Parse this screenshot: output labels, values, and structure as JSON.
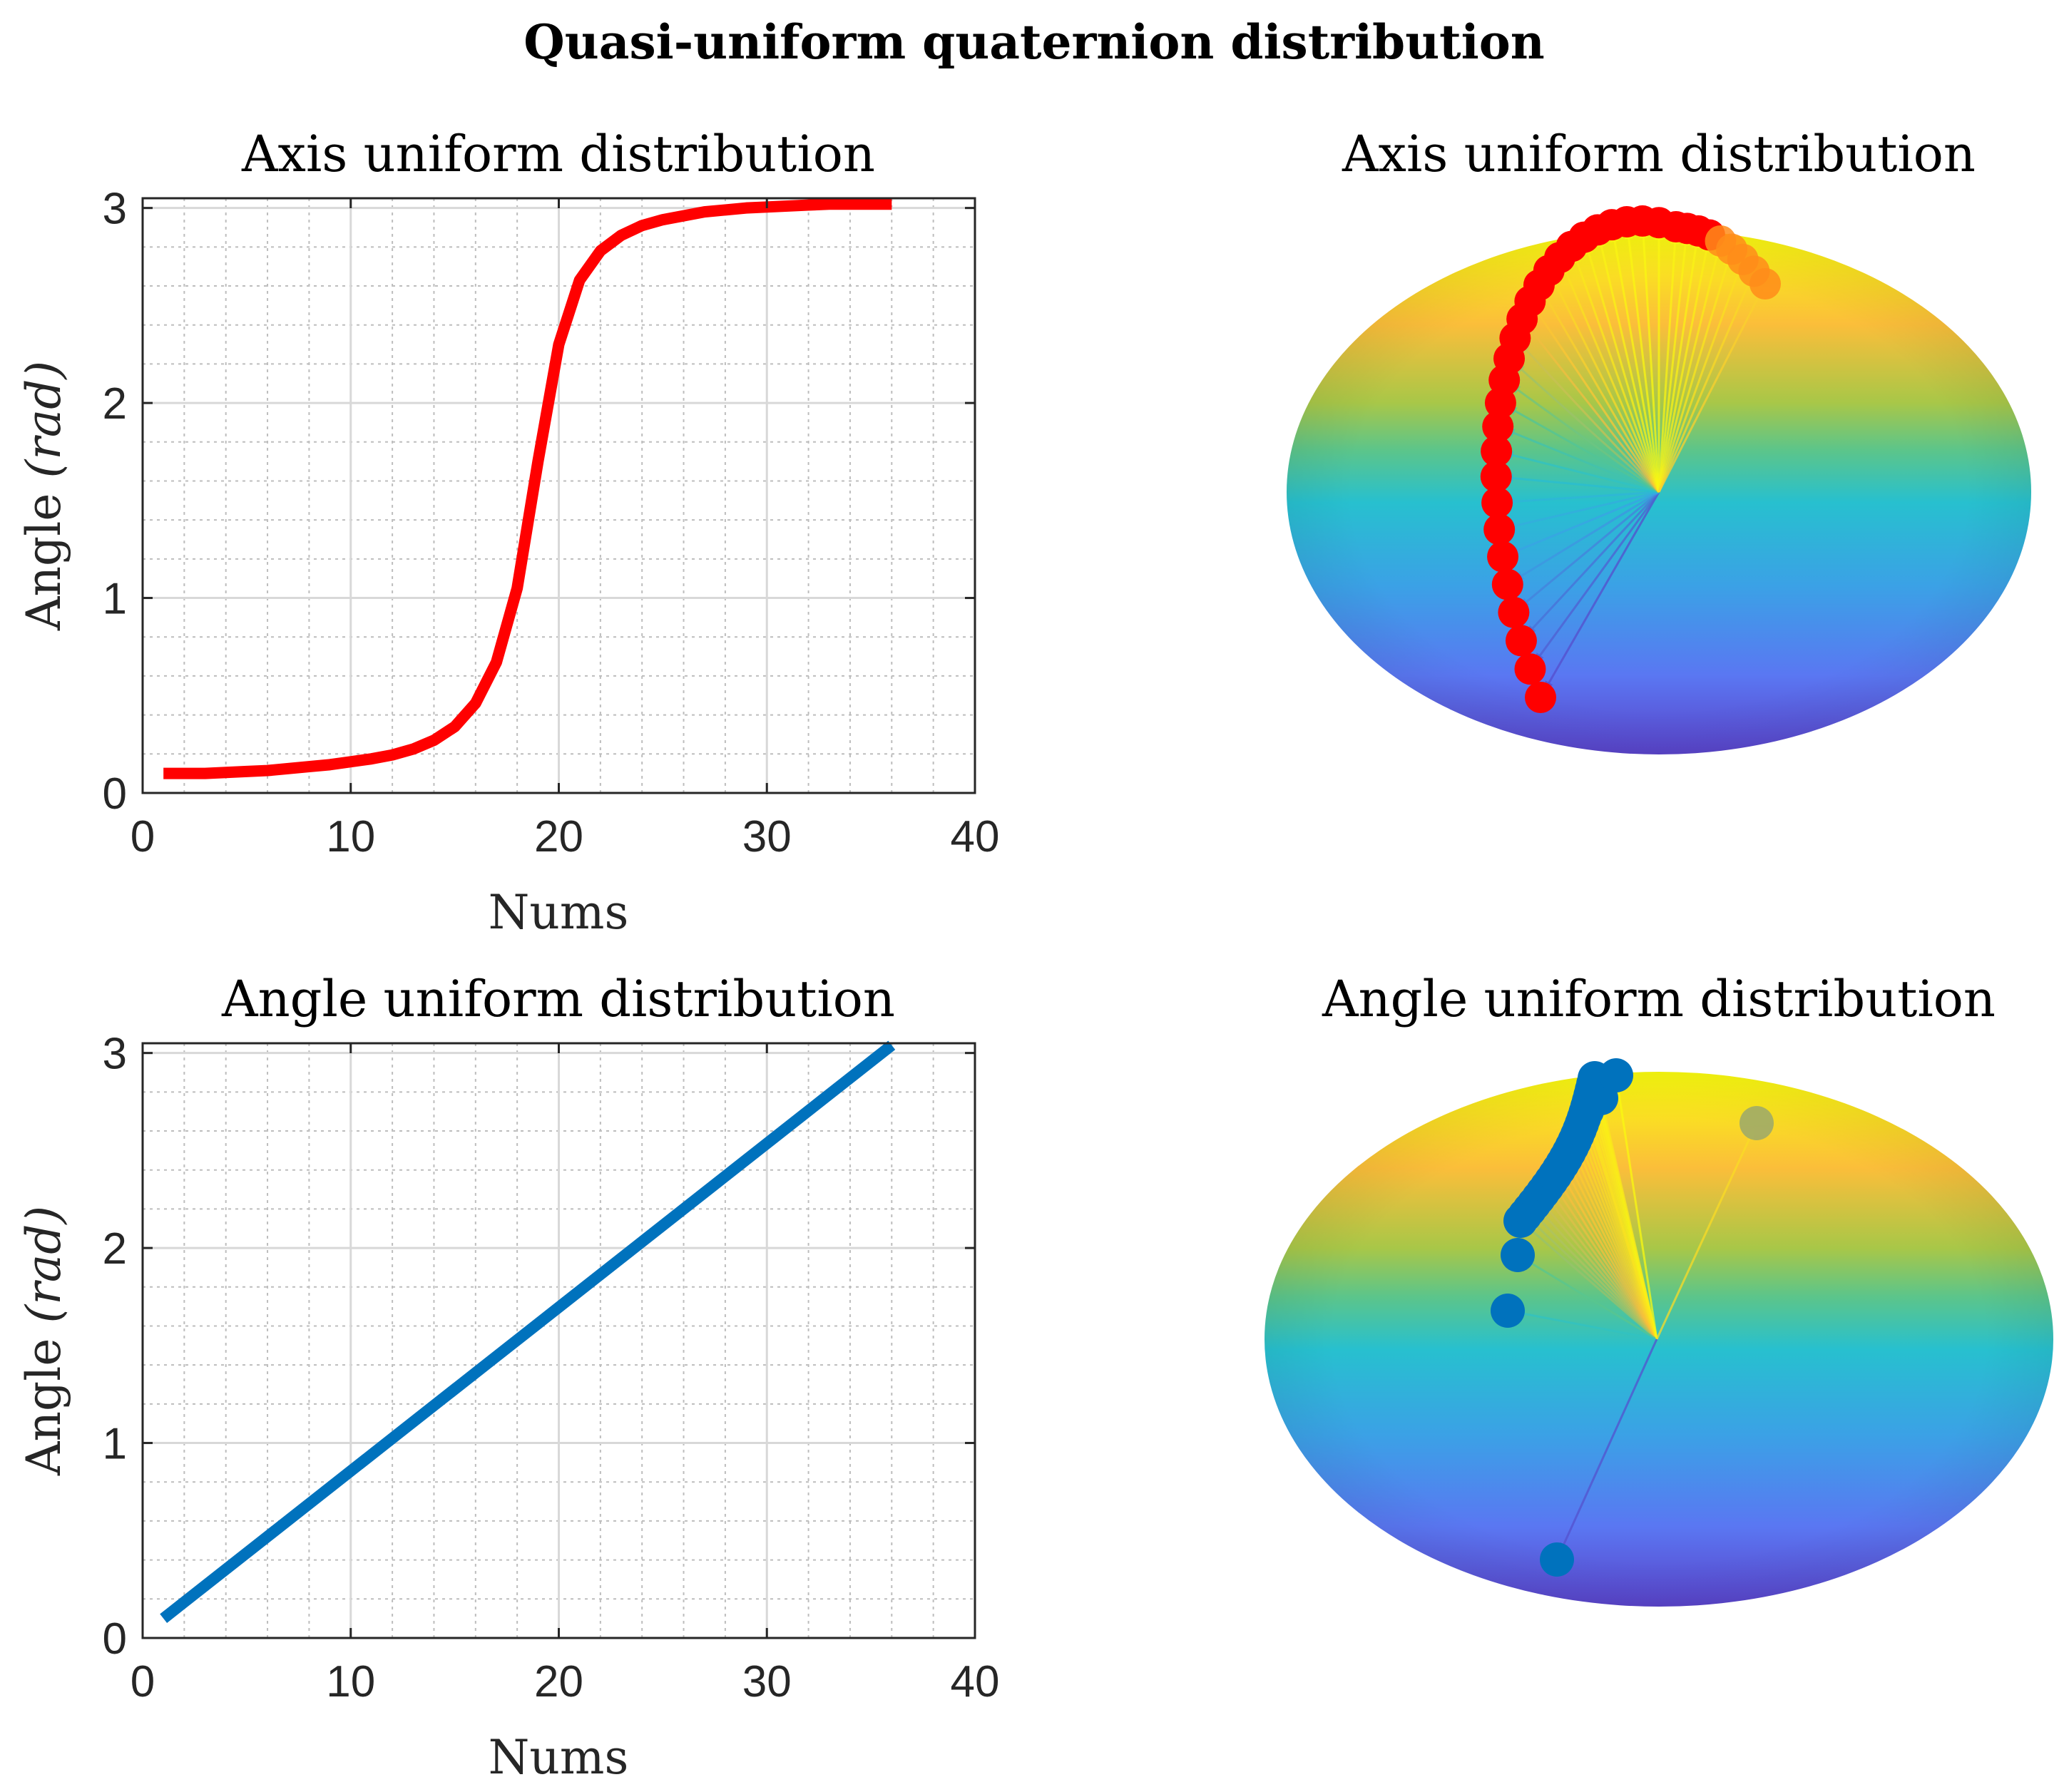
{
  "figure_title": "Quasi-uniform quaternion distribution",
  "colors": {
    "red": "#ff0000",
    "blue": "#0072bd",
    "axis": "#262626"
  },
  "chart_data": [
    {
      "type": "line",
      "title": "Axis uniform distribution",
      "xlabel": "Nums",
      "ylabel_prefix": "Angle",
      "ylabel_unit": "(rad)",
      "xlim": [
        0,
        40
      ],
      "ylim": [
        0,
        3.05
      ],
      "xticks": [
        0,
        10,
        20,
        30,
        40
      ],
      "yticks": [
        0,
        1,
        2,
        3
      ],
      "grid": true,
      "minor_grid": true,
      "series": [
        {
          "name": "angle",
          "color": "#ff0000",
          "x": [
            1,
            2,
            3,
            4,
            5,
            6,
            7,
            8,
            9,
            10,
            11,
            12,
            13,
            14,
            15,
            16,
            17,
            18,
            19,
            20,
            21,
            22,
            23,
            24,
            25,
            26,
            27,
            28,
            29,
            30,
            31,
            32,
            33,
            34,
            35,
            36
          ],
          "y": [
            0.1,
            0.1,
            0.1,
            0.105,
            0.11,
            0.115,
            0.125,
            0.135,
            0.145,
            0.16,
            0.175,
            0.195,
            0.225,
            0.27,
            0.34,
            0.46,
            0.67,
            1.05,
            1.7,
            2.3,
            2.63,
            2.78,
            2.86,
            2.91,
            2.94,
            2.96,
            2.98,
            2.99,
            3.0,
            3.005,
            3.01,
            3.015,
            3.02,
            3.02,
            3.02,
            3.02
          ]
        }
      ]
    },
    {
      "type": "3d-sphere-arrows",
      "title": "Axis uniform distribution",
      "marker_color": "#ff0000",
      "surface": "parula-colored sphere"
    },
    {
      "type": "line",
      "title": "Angle uniform distribution",
      "xlabel": "Nums",
      "ylabel_prefix": "Angle",
      "ylabel_unit": "(rad)",
      "xlim": [
        0,
        40
      ],
      "ylim": [
        0,
        3.05
      ],
      "xticks": [
        0,
        10,
        20,
        30,
        40
      ],
      "yticks": [
        0,
        1,
        2,
        3
      ],
      "grid": true,
      "minor_grid": true,
      "series": [
        {
          "name": "angle",
          "color": "#0072bd",
          "x": [
            1,
            36
          ],
          "y": [
            0.1,
            3.04
          ]
        }
      ]
    },
    {
      "type": "3d-sphere-arrows",
      "title": "Angle uniform distribution",
      "marker_color": "#0072bd",
      "surface": "parula-colored sphere"
    }
  ]
}
